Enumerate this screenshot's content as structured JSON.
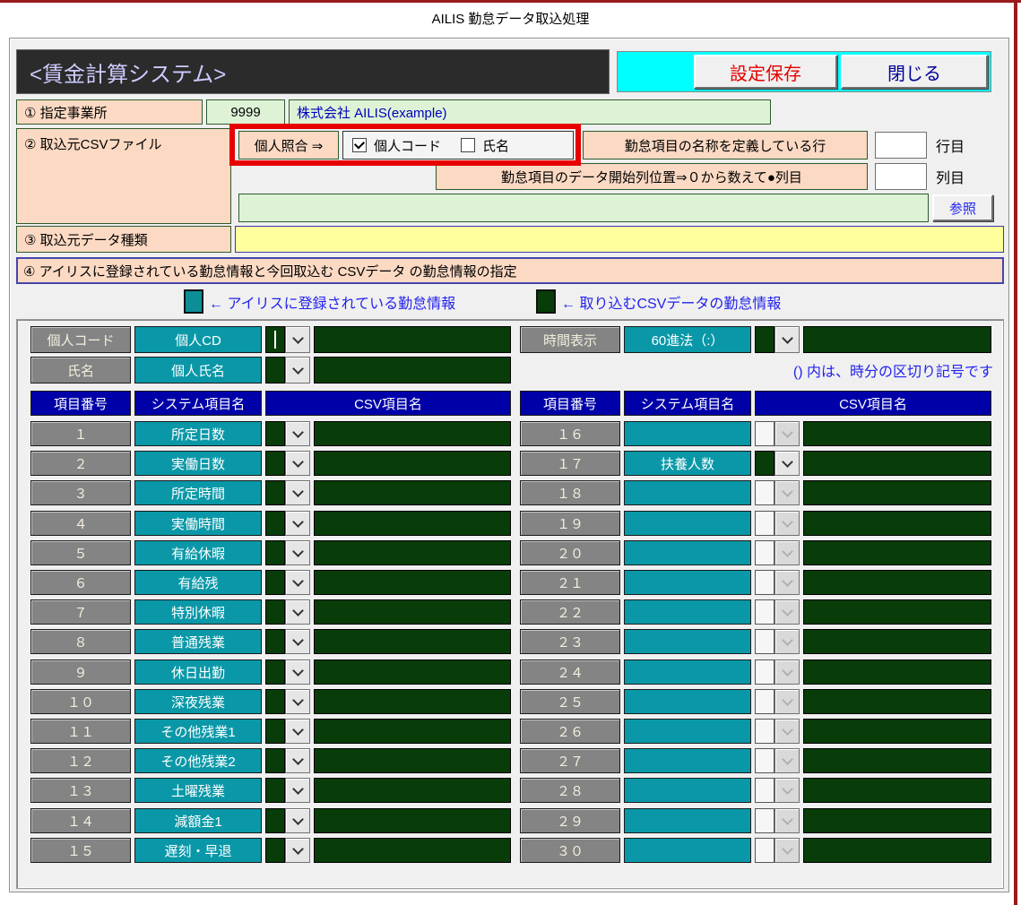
{
  "page": {
    "title": "AILIS 勤怠データ取込処理"
  },
  "header": {
    "system_label": "<賃金計算システム>",
    "save_button": "設定保存",
    "close_button": "閉じる"
  },
  "section1": {
    "label": "① 指定事業所",
    "office_code": "9999",
    "office_name": "株式会社 AILIS(example)"
  },
  "section2": {
    "label": "② 取込元CSVファイル",
    "match_label": "個人照合 ⇒",
    "checkbox_personal_code": {
      "label": "個人コード",
      "checked": true
    },
    "checkbox_name": {
      "label": "氏名",
      "checked": false
    },
    "header_row_label": "勤怠項目の名称を定義している行",
    "header_row_value": "",
    "row_suffix": "行目",
    "start_col_label": "勤怠項目のデータ開始列位置⇒０から数えて●列目",
    "start_col_value": "",
    "col_suffix": "列目",
    "file_path": "",
    "browse_button": "参照"
  },
  "section3": {
    "label": "③ 取込元データ種類",
    "value": ""
  },
  "section4": {
    "label": "④ アイリスに登録されている勤怠情報と今回取込む CSVデータ の勤怠情報の指定"
  },
  "legend": {
    "ailis_label": "← アイリスに登録されている勤怠情報",
    "csv_label": "← 取り込むCSVデータの勤怠情報",
    "ailis_color": "#0d8e96",
    "csv_color": "#083c08"
  },
  "mapping": {
    "personal_rows": [
      {
        "label": "個人コード",
        "system": "個人CD",
        "csv": ""
      },
      {
        "label": "氏名",
        "system": "個人氏名",
        "csv": ""
      }
    ],
    "time_row": {
      "label": "時間表示",
      "system": "60進法（:）",
      "csv": ""
    },
    "time_note": "() 内は、時分の区切り記号です",
    "table_headers": {
      "item_no": "項目番号",
      "system_name": "システム項目名",
      "csv_name": "CSV項目名"
    },
    "left_rows": [
      {
        "no": "１",
        "name": "所定日数",
        "enabled": true
      },
      {
        "no": "２",
        "name": "実働日数",
        "enabled": true
      },
      {
        "no": "３",
        "name": "所定時間",
        "enabled": true
      },
      {
        "no": "４",
        "name": "実働時間",
        "enabled": true
      },
      {
        "no": "５",
        "name": "有給休暇",
        "enabled": true
      },
      {
        "no": "６",
        "name": "有給残",
        "enabled": true
      },
      {
        "no": "７",
        "name": "特別休暇",
        "enabled": true
      },
      {
        "no": "８",
        "name": "普通残業",
        "enabled": true
      },
      {
        "no": "９",
        "name": "休日出勤",
        "enabled": true
      },
      {
        "no": "１０",
        "name": "深夜残業",
        "enabled": true
      },
      {
        "no": "１１",
        "name": "その他残業1",
        "enabled": true
      },
      {
        "no": "１２",
        "name": "その他残業2",
        "enabled": true
      },
      {
        "no": "１３",
        "name": "土曜残業",
        "enabled": true
      },
      {
        "no": "１４",
        "name": "減額金1",
        "enabled": true
      },
      {
        "no": "１５",
        "name": "遅刻・早退",
        "enabled": true
      }
    ],
    "right_rows": [
      {
        "no": "１６",
        "name": "",
        "enabled": false
      },
      {
        "no": "１７",
        "name": "扶養人数",
        "enabled": true
      },
      {
        "no": "１８",
        "name": "",
        "enabled": false
      },
      {
        "no": "１９",
        "name": "",
        "enabled": false
      },
      {
        "no": "２０",
        "name": "",
        "enabled": false
      },
      {
        "no": "２１",
        "name": "",
        "enabled": false
      },
      {
        "no": "２２",
        "name": "",
        "enabled": false
      },
      {
        "no": "２３",
        "name": "",
        "enabled": false
      },
      {
        "no": "２４",
        "name": "",
        "enabled": false
      },
      {
        "no": "２５",
        "name": "",
        "enabled": false
      },
      {
        "no": "２６",
        "name": "",
        "enabled": false
      },
      {
        "no": "２７",
        "name": "",
        "enabled": false
      },
      {
        "no": "２８",
        "name": "",
        "enabled": false
      },
      {
        "no": "２９",
        "name": "",
        "enabled": false
      },
      {
        "no": "３０",
        "name": "",
        "enabled": false
      }
    ]
  },
  "colors": {
    "teal": "#0a98a8",
    "dark_green": "#083c08",
    "navy_header": "#0000a8",
    "cyan_strip": "#00ffff",
    "peach": "#fbd9c3",
    "yellow_field": "#ffff9e",
    "annotation_red": "#e60000",
    "frame_red": "#9a1b1b",
    "save_text": "#e60000",
    "close_text": "#000099"
  }
}
